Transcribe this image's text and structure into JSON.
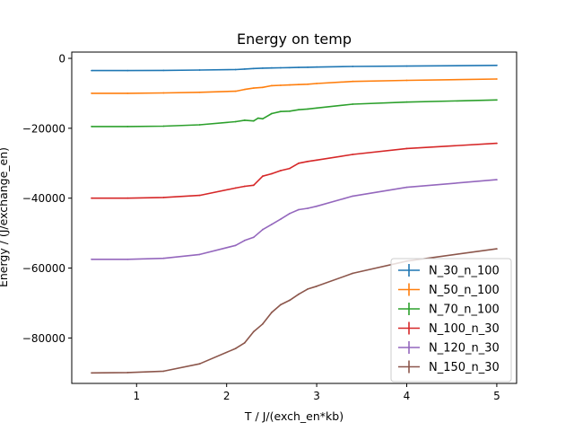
{
  "chart_data": {
    "type": "line",
    "title": "Energy on temp",
    "xlabel": "T / J/(exch_en*kb)",
    "ylabel": "Energy / (J/exchange_en)",
    "xlim": [
      0.28,
      5.22
    ],
    "ylim": [
      -93000,
      1800
    ],
    "xticks": [
      1,
      2,
      3,
      4,
      5
    ],
    "xtick_labels": [
      "1",
      "2",
      "3",
      "4",
      "5"
    ],
    "yticks": [
      0,
      -20000,
      -40000,
      -60000,
      -80000
    ],
    "ytick_labels": [
      "0",
      "−20000",
      "−40000",
      "−60000",
      "−80000"
    ],
    "grid": false,
    "legend_position": "lower right",
    "series": [
      {
        "name": "N_30_n_100",
        "color": "#1f77b4",
        "x": [
          0.5,
          0.9,
          1.3,
          1.7,
          2.1,
          2.2,
          2.3,
          2.4,
          2.5,
          2.6,
          2.7,
          2.8,
          2.9,
          3.0,
          3.4,
          4.0,
          5.0
        ],
        "y": [
          -3500,
          -3500,
          -3450,
          -3350,
          -3200,
          -3050,
          -2900,
          -2800,
          -2750,
          -2700,
          -2650,
          -2600,
          -2550,
          -2500,
          -2300,
          -2200,
          -2000
        ]
      },
      {
        "name": "N_50_n_100",
        "color": "#ff7f0e",
        "x": [
          0.5,
          0.9,
          1.3,
          1.7,
          2.1,
          2.2,
          2.3,
          2.4,
          2.5,
          2.6,
          2.7,
          2.8,
          2.9,
          3.0,
          3.4,
          4.0,
          5.0
        ],
        "y": [
          -10000,
          -10000,
          -9900,
          -9700,
          -9400,
          -8900,
          -8500,
          -8300,
          -7800,
          -7700,
          -7600,
          -7500,
          -7400,
          -7200,
          -6600,
          -6300,
          -5900
        ]
      },
      {
        "name": "N_70_n_100",
        "color": "#2ca02c",
        "x": [
          0.5,
          0.9,
          1.3,
          1.7,
          2.1,
          2.2,
          2.3,
          2.35,
          2.4,
          2.5,
          2.6,
          2.7,
          2.8,
          2.9,
          3.0,
          3.4,
          4.0,
          5.0
        ],
        "y": [
          -19500,
          -19500,
          -19400,
          -19000,
          -18100,
          -17700,
          -17900,
          -17100,
          -17300,
          -15800,
          -15200,
          -15100,
          -14700,
          -14500,
          -14200,
          -13100,
          -12500,
          -11900
        ]
      },
      {
        "name": "N_100_n_30",
        "color": "#d62728",
        "x": [
          0.5,
          0.9,
          1.3,
          1.7,
          2.1,
          2.2,
          2.3,
          2.4,
          2.5,
          2.6,
          2.7,
          2.8,
          2.9,
          3.0,
          3.4,
          4.0,
          5.0
        ],
        "y": [
          -40000,
          -40000,
          -39800,
          -39200,
          -37100,
          -36600,
          -36300,
          -33700,
          -33000,
          -32100,
          -31500,
          -30000,
          -29500,
          -29100,
          -27500,
          -25800,
          -24300
        ]
      },
      {
        "name": "N_120_n_30",
        "color": "#9467bd",
        "x": [
          0.5,
          0.9,
          1.3,
          1.7,
          2.1,
          2.2,
          2.3,
          2.4,
          2.5,
          2.6,
          2.7,
          2.8,
          2.9,
          3.0,
          3.4,
          4.0,
          5.0
        ],
        "y": [
          -57500,
          -57500,
          -57200,
          -56100,
          -53500,
          -52100,
          -51200,
          -49000,
          -47500,
          -46000,
          -44400,
          -43300,
          -42900,
          -42300,
          -39400,
          -36900,
          -34700
        ]
      },
      {
        "name": "N_150_n_30",
        "color": "#8c564b",
        "x": [
          0.5,
          0.9,
          1.3,
          1.7,
          2.1,
          2.2,
          2.3,
          2.4,
          2.5,
          2.6,
          2.7,
          2.8,
          2.9,
          3.0,
          3.4,
          4.0,
          5.0
        ],
        "y": [
          -90000,
          -89900,
          -89500,
          -87400,
          -83000,
          -81400,
          -78200,
          -76000,
          -72700,
          -70500,
          -69200,
          -67500,
          -66000,
          -65200,
          -61500,
          -58000,
          -54500
        ]
      }
    ]
  }
}
